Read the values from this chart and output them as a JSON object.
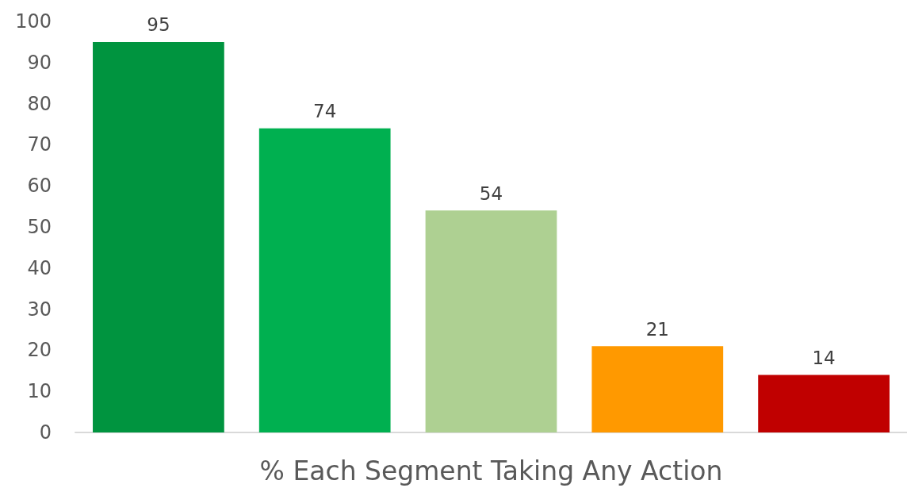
{
  "chart_data": {
    "type": "bar",
    "xlabel": "% Each Segment Taking Any Action",
    "categories": [
      null,
      null,
      null,
      null,
      null
    ],
    "values": [
      95,
      74,
      54,
      21,
      14
    ],
    "colors": [
      "#00943f",
      "#00b050",
      "#aed092",
      "#ff9900",
      "#c00000"
    ],
    "ylim": [
      0,
      100
    ],
    "yticks": [
      0,
      10,
      20,
      30,
      40,
      50,
      60,
      70,
      80,
      90,
      100
    ],
    "grid": false,
    "data_labels": true
  }
}
